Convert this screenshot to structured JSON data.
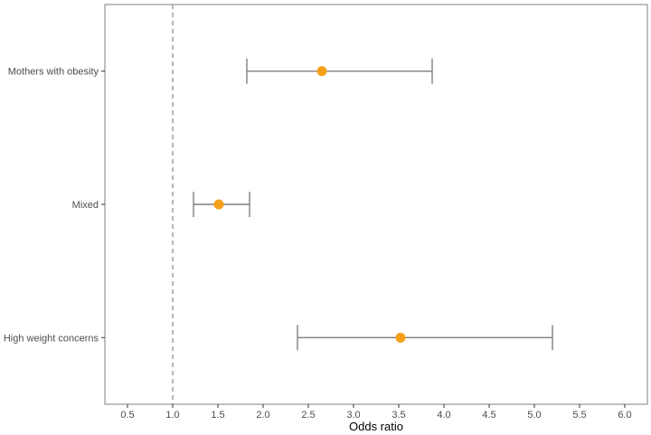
{
  "chart_data": {
    "type": "forest",
    "title": "",
    "xlabel": "Odds ratio",
    "ylabel": "",
    "xlim": [
      0.25,
      6.25
    ],
    "x_ticks": [
      "0.5",
      "1.0",
      "1.5",
      "2.0",
      "2.5",
      "3.0",
      "3.5",
      "4.0",
      "4.5",
      "5.0",
      "5.5",
      "6.0"
    ],
    "reference_line": 1.0,
    "grid": false,
    "categories": [
      "Mothers with obesity",
      "Mixed",
      "High weight concerns"
    ],
    "series": [
      {
        "estimate": [
          2.65,
          1.51,
          3.52
        ],
        "lower": [
          1.82,
          1.23,
          2.38
        ],
        "upper": [
          3.87,
          1.85,
          5.2
        ]
      }
    ],
    "colors": {
      "point": "#f5a01a",
      "errorbar": "#7f7f7f",
      "refline": "#7f7f7f",
      "panel_border": "#7f7f7f"
    }
  }
}
